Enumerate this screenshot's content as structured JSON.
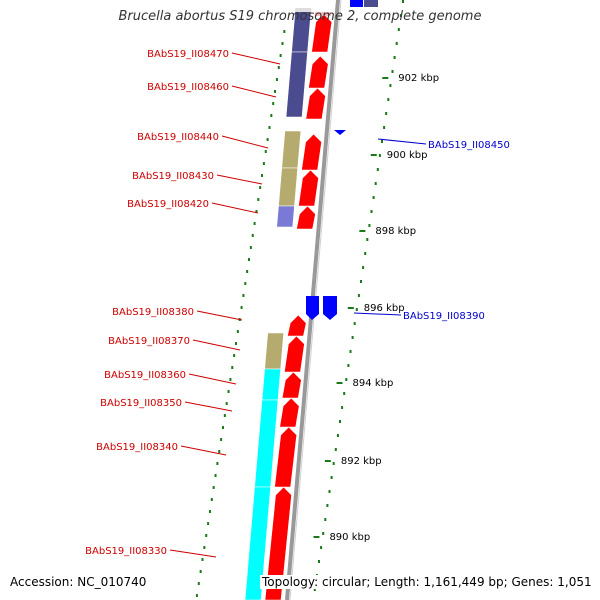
{
  "title": "Brucella abortus S19 chromosome 2, complete genome",
  "footer": {
    "accession": "Accession: NC_010740",
    "topology": "Topology: circular; Length: 1,161,449 bp; Genes: 1,051"
  },
  "colors": {
    "forward_cds": "#ff0000",
    "reverse_cds": "#0000ff",
    "cog_navy": "#4b4b8f",
    "cog_khaki": "#b5ab6e",
    "cog_cyan": "#00ffff",
    "cog_lavender": "#7a7ad6",
    "backbone": "#999999",
    "tick": "#1a7a1a",
    "forward_label": "#cc0000",
    "reverse_label": "#0000cc"
  },
  "axis": {
    "ticks": [
      "890 kbp",
      "892 kbp",
      "894 kbp",
      "896 kbp",
      "898 kbp",
      "900 kbp",
      "902 kbp"
    ]
  },
  "genes": {
    "forward": [
      "BAbS19_II08470",
      "BAbS19_II08460",
      "BAbS19_II08440",
      "BAbS19_II08430",
      "BAbS19_II08420",
      "BAbS19_II08380",
      "BAbS19_II08370",
      "BAbS19_II08360",
      "BAbS19_II08350",
      "BAbS19_II08340",
      "BAbS19_II08330"
    ],
    "reverse": [
      "BAbS19_II08450",
      "BAbS19_II08390"
    ]
  }
}
